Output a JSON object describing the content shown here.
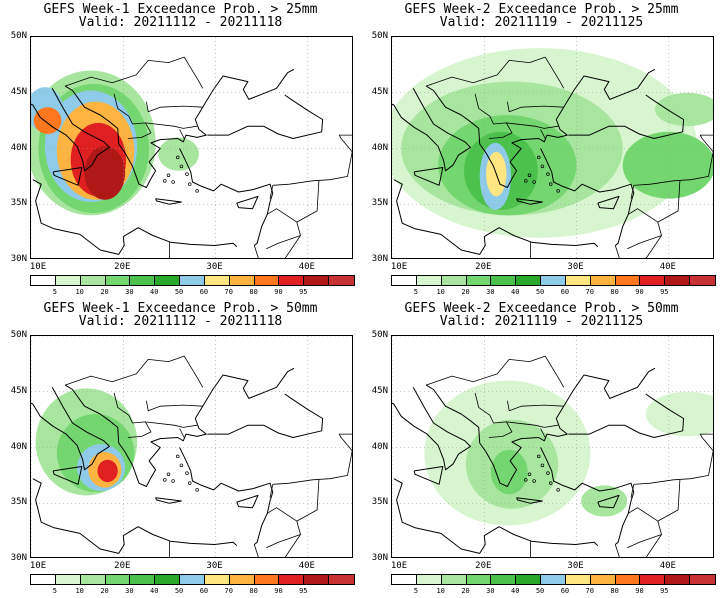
{
  "panels": [
    {
      "title_line1": "GEFS Week-1 Exceedance Prob. > 25mm",
      "title_line2": "Valid: 20211112 - 20211118",
      "week": 1,
      "threshold_mm": 25
    },
    {
      "title_line1": "GEFS Week-2 Exceedance Prob. > 25mm",
      "title_line2": "Valid: 20211119 - 20211125",
      "week": 2,
      "threshold_mm": 25
    },
    {
      "title_line1": "GEFS Week-1 Exceedance Prob. > 50mm",
      "title_line2": "Valid: 20211112 - 20211118",
      "week": 1,
      "threshold_mm": 50
    },
    {
      "title_line1": "GEFS Week-2 Exceedance Prob. > 50mm",
      "title_line2": "Valid: 20211119 - 20211125",
      "week": 2,
      "threshold_mm": 50
    }
  ],
  "axes": {
    "lat_labels": [
      "50N",
      "45N",
      "40N",
      "35N",
      "30N"
    ],
    "lat_values": [
      50,
      45,
      40,
      35,
      30
    ],
    "lon_labels": [
      "10E",
      "20E",
      "30E",
      "40E"
    ],
    "lon_values": [
      10,
      20,
      30,
      40
    ],
    "lon_range": [
      10,
      45
    ],
    "lat_range": [
      30,
      50
    ]
  },
  "colorbar": {
    "labels": [
      "5",
      "10",
      "20",
      "30",
      "40",
      "50",
      "60",
      "70",
      "80",
      "90",
      "95"
    ],
    "colors": [
      "#ffffff",
      "#d7f5cf",
      "#a8e6a0",
      "#74d66e",
      "#4cc24c",
      "#2aa82a",
      "#8ecbe8",
      "#ffe680",
      "#ffb340",
      "#ff7820",
      "#e02020",
      "#b01818",
      "#c83232"
    ]
  }
}
